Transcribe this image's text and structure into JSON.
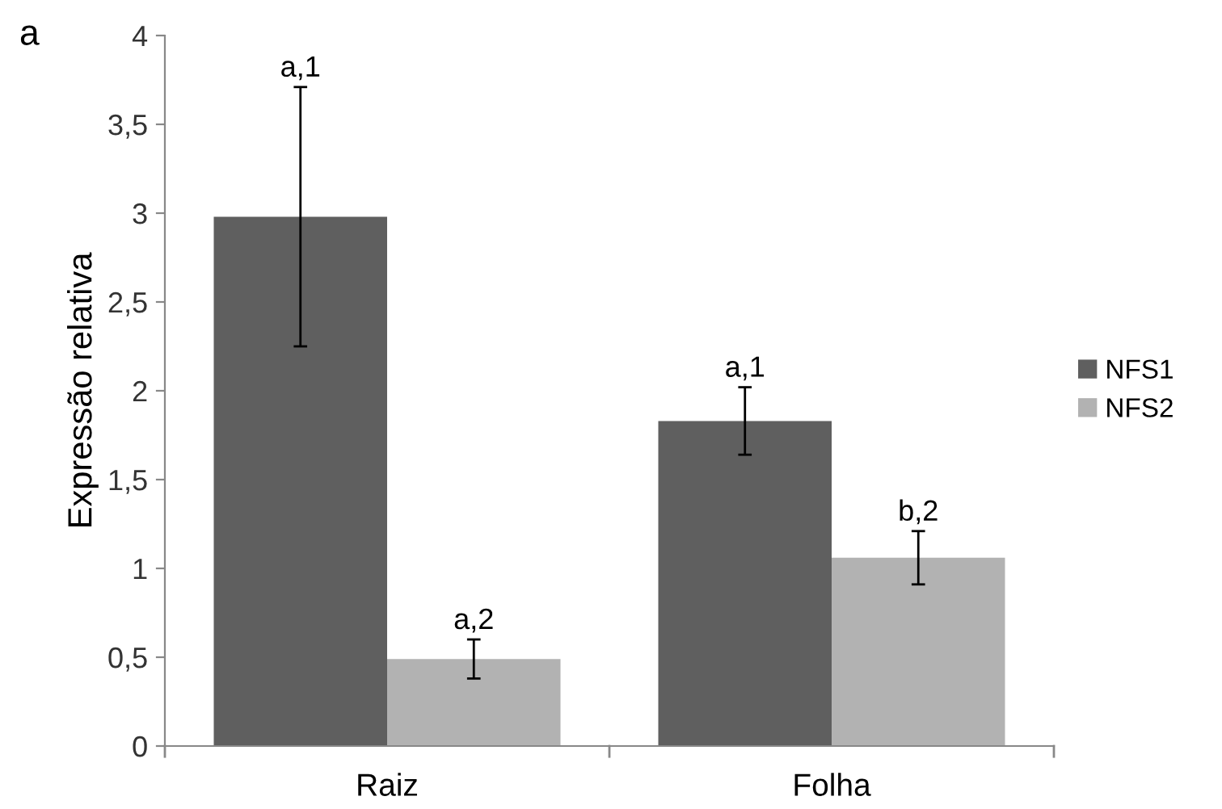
{
  "chart_data": {
    "type": "bar",
    "ylabel": "Expressão relativa",
    "categories": [
      "Raiz",
      "Folha"
    ],
    "series": [
      {
        "name": "NFS1",
        "color": "#5f5f5f",
        "values": [
          2.98,
          1.83
        ],
        "errors": [
          0.73,
          0.19
        ]
      },
      {
        "name": "NFS2",
        "color": "#b2b2b2",
        "values": [
          0.49,
          1.06
        ],
        "errors": [
          0.11,
          0.15
        ]
      }
    ],
    "ylim": [
      0,
      4
    ],
    "yticks": [
      0,
      {
        "value": 0.5,
        "label": "0,5"
      },
      1,
      {
        "value": 1.5,
        "label": "1,5"
      },
      2,
      {
        "value": 2.5,
        "label": "2,5"
      },
      3,
      {
        "value": 3.5,
        "label": "3,5"
      },
      4
    ],
    "annotations": [
      "a",
      "a,1",
      "a,2",
      "a,1",
      "b,2"
    ],
    "grid": false,
    "legend": "right"
  }
}
